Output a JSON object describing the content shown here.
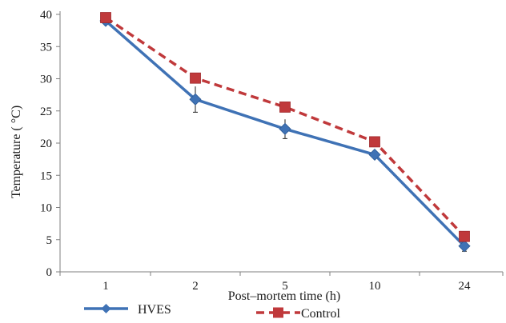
{
  "chart_data": {
    "type": "line",
    "title": "",
    "xlabel": "Post–mortem time (h)",
    "ylabel": "Temperature ( °C)",
    "categories": [
      "1",
      "2",
      "5",
      "10",
      "24"
    ],
    "ylim": [
      0,
      40
    ],
    "yticks": [
      0,
      5,
      10,
      15,
      20,
      25,
      30,
      35,
      40
    ],
    "grid": false,
    "legend_position": "bottom",
    "series": [
      {
        "name": "HVES",
        "values": [
          39.0,
          26.8,
          22.2,
          18.2,
          4.0
        ],
        "error": [
          0.4,
          2.0,
          1.5,
          0.5,
          0.8
        ],
        "color": "#3f72b5",
        "line_style": "solid",
        "marker": "diamond"
      },
      {
        "name": "Control",
        "values": [
          39.5,
          30.1,
          25.6,
          20.2,
          5.5
        ],
        "error": [
          0.3,
          0.4,
          0.4,
          0.4,
          0.4
        ],
        "color": "#c0393b",
        "line_style": "dashed",
        "marker": "square"
      }
    ]
  }
}
